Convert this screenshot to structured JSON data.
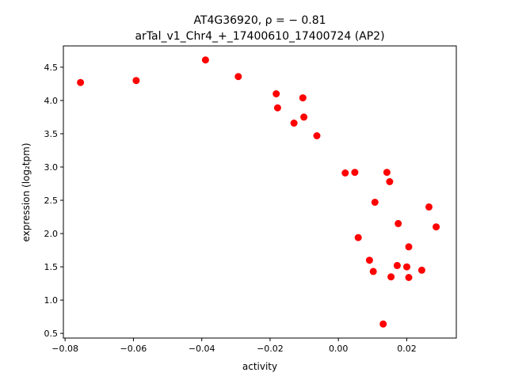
{
  "chart_data": {
    "type": "scatter",
    "title_line1": "AT4G36920, ρ = − 0.81",
    "title_line2": "arTal_v1_Chr4_+_17400610_17400724 (AP2)",
    "xlabel": "activity",
    "ylabel": "expression (log₂tpm)",
    "xlim": [
      -0.0805,
      0.0345
    ],
    "ylim": [
      0.43,
      4.82
    ],
    "xticks": [
      {
        "value": -0.08,
        "label": "−0.08"
      },
      {
        "value": -0.06,
        "label": "−0.06"
      },
      {
        "value": -0.04,
        "label": "−0.04"
      },
      {
        "value": -0.02,
        "label": "−0.02"
      },
      {
        "value": 0.0,
        "label": "0.00"
      },
      {
        "value": 0.02,
        "label": "0.02"
      }
    ],
    "yticks": [
      {
        "value": 0.5,
        "label": "0.5"
      },
      {
        "value": 1.0,
        "label": "1.0"
      },
      {
        "value": 1.5,
        "label": "1.5"
      },
      {
        "value": 2.0,
        "label": "2.0"
      },
      {
        "value": 2.5,
        "label": "2.5"
      },
      {
        "value": 3.0,
        "label": "3.0"
      },
      {
        "value": 3.5,
        "label": "3.5"
      },
      {
        "value": 4.0,
        "label": "4.0"
      },
      {
        "value": 4.5,
        "label": "4.5"
      }
    ],
    "marker_color": "#ff0000",
    "grid": false,
    "points": [
      {
        "x": -0.0755,
        "y": 4.27
      },
      {
        "x": -0.0592,
        "y": 4.3
      },
      {
        "x": -0.0389,
        "y": 4.61
      },
      {
        "x": -0.0293,
        "y": 4.36
      },
      {
        "x": -0.0182,
        "y": 4.1
      },
      {
        "x": -0.0178,
        "y": 3.89
      },
      {
        "x": -0.0104,
        "y": 4.04
      },
      {
        "x": -0.0101,
        "y": 3.75
      },
      {
        "x": -0.013,
        "y": 3.66
      },
      {
        "x": -0.0063,
        "y": 3.47
      },
      {
        "x": 0.002,
        "y": 2.91
      },
      {
        "x": 0.0048,
        "y": 2.92
      },
      {
        "x": 0.0142,
        "y": 2.92
      },
      {
        "x": 0.015,
        "y": 2.78
      },
      {
        "x": 0.0265,
        "y": 2.4
      },
      {
        "x": 0.0107,
        "y": 2.47
      },
      {
        "x": 0.0175,
        "y": 2.15
      },
      {
        "x": 0.0286,
        "y": 2.1
      },
      {
        "x": 0.0058,
        "y": 1.94
      },
      {
        "x": 0.0206,
        "y": 1.8
      },
      {
        "x": 0.0091,
        "y": 1.6
      },
      {
        "x": 0.0172,
        "y": 1.52
      },
      {
        "x": 0.02,
        "y": 1.5
      },
      {
        "x": 0.0102,
        "y": 1.43
      },
      {
        "x": 0.0244,
        "y": 1.45
      },
      {
        "x": 0.0154,
        "y": 1.35
      },
      {
        "x": 0.0206,
        "y": 1.34
      },
      {
        "x": 0.0131,
        "y": 0.64
      }
    ]
  }
}
